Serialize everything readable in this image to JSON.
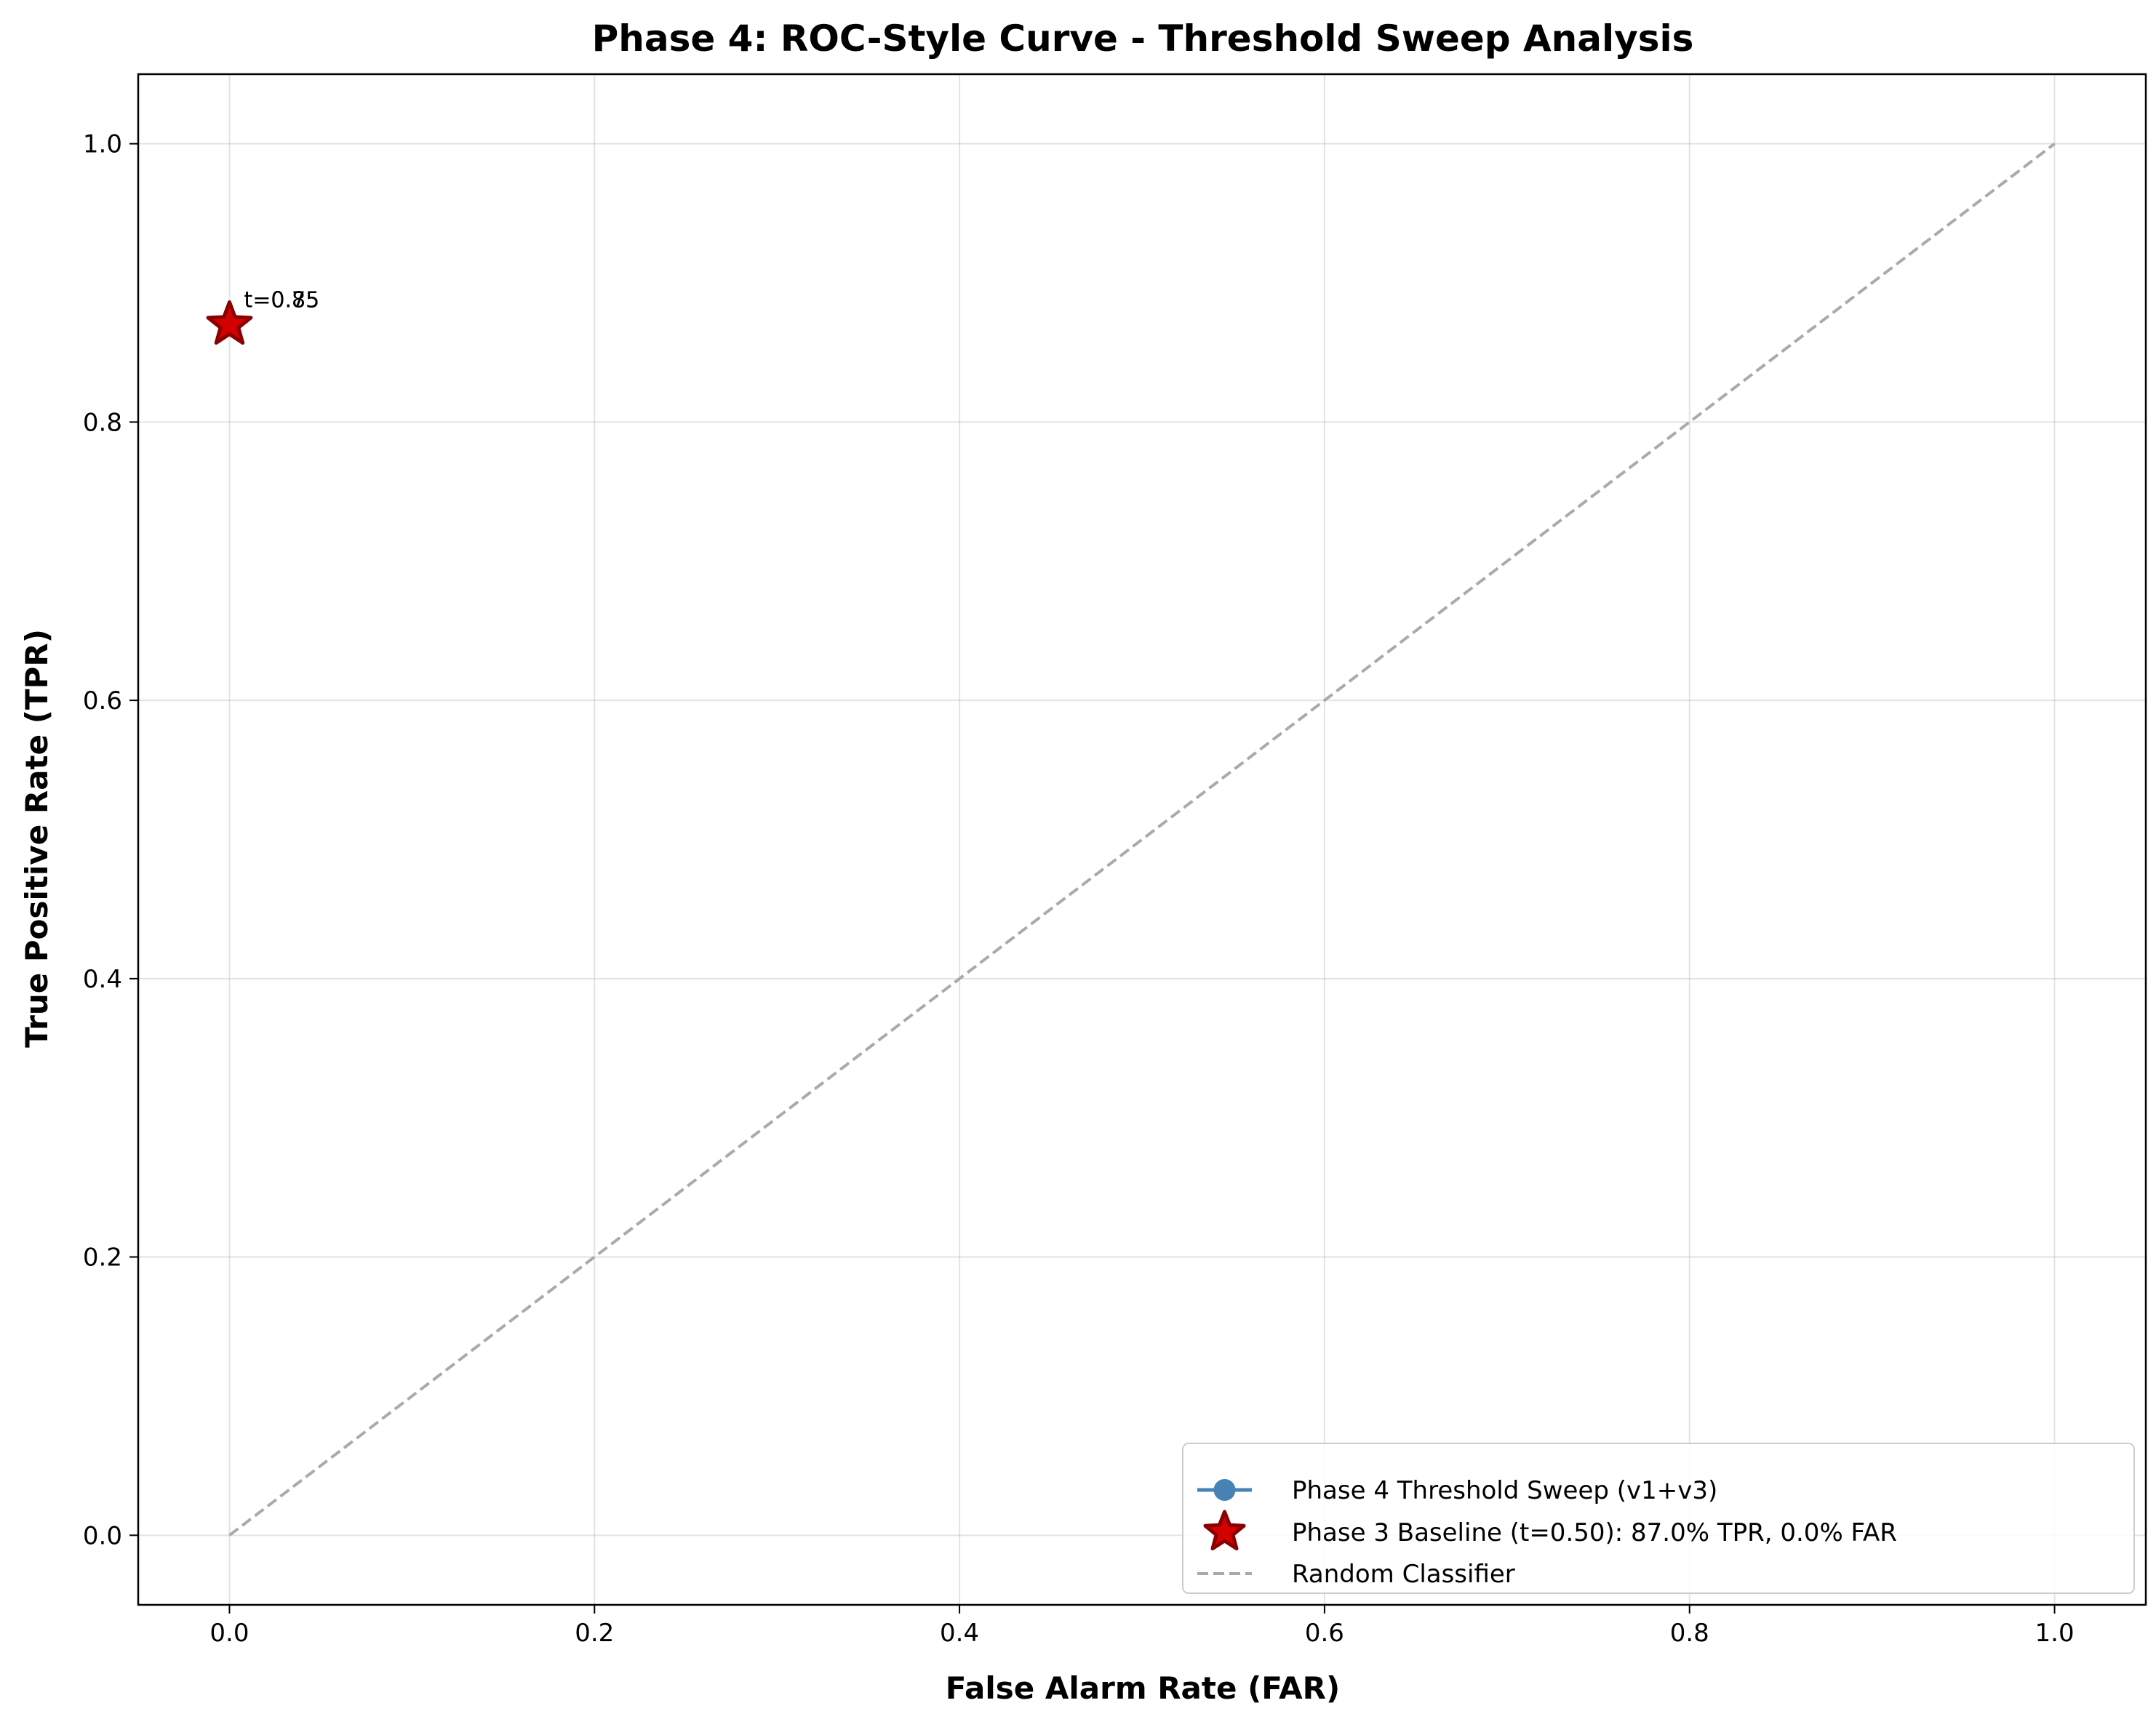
{
  "chart_data": {
    "type": "scatter",
    "title": "Phase 4: ROC-Style Curve - Threshold Sweep Analysis",
    "xlabel": "False Alarm Rate (FAR)",
    "ylabel": "True Positive Rate (TPR)",
    "xlim": [
      -0.05,
      1.05
    ],
    "ylim": [
      -0.05,
      1.05
    ],
    "x_ticks": [
      0.0,
      0.2,
      0.4,
      0.6,
      0.8,
      1.0
    ],
    "y_ticks": [
      0.0,
      0.2,
      0.4,
      0.6,
      0.8,
      1.0
    ],
    "x_tick_labels": [
      "0.0",
      "0.2",
      "0.4",
      "0.6",
      "0.8",
      "1.0"
    ],
    "y_tick_labels": [
      "0.0",
      "0.2",
      "0.4",
      "0.6",
      "0.8",
      "1.0"
    ],
    "grid": true,
    "legend_position": "lower-right",
    "series": [
      {
        "name": "Phase 4 Threshold Sweep (v1+v3)",
        "kind": "line-marker",
        "color": "#4682b4",
        "points": [
          {
            "x": 0.0,
            "y": 0.87
          },
          {
            "x": 0.0,
            "y": 0.87
          }
        ]
      },
      {
        "name": "Phase 3 Baseline (t=0.50): 87.0% TPR, 0.0% FAR",
        "kind": "star",
        "color": "#d40000",
        "edge_color": "#8b0000",
        "points": [
          {
            "x": 0.0,
            "y": 0.87
          }
        ]
      },
      {
        "name": "Random Classifier",
        "kind": "dashed-line",
        "color": "#aaaaaa",
        "points": [
          {
            "x": 0.0,
            "y": 0.0
          },
          {
            "x": 1.0,
            "y": 1.0
          }
        ]
      }
    ],
    "annotations": [
      {
        "text": "t=0.75",
        "x": 0.0,
        "y": 0.87
      },
      {
        "text": "t=0.85",
        "x": 0.0,
        "y": 0.87
      }
    ]
  }
}
